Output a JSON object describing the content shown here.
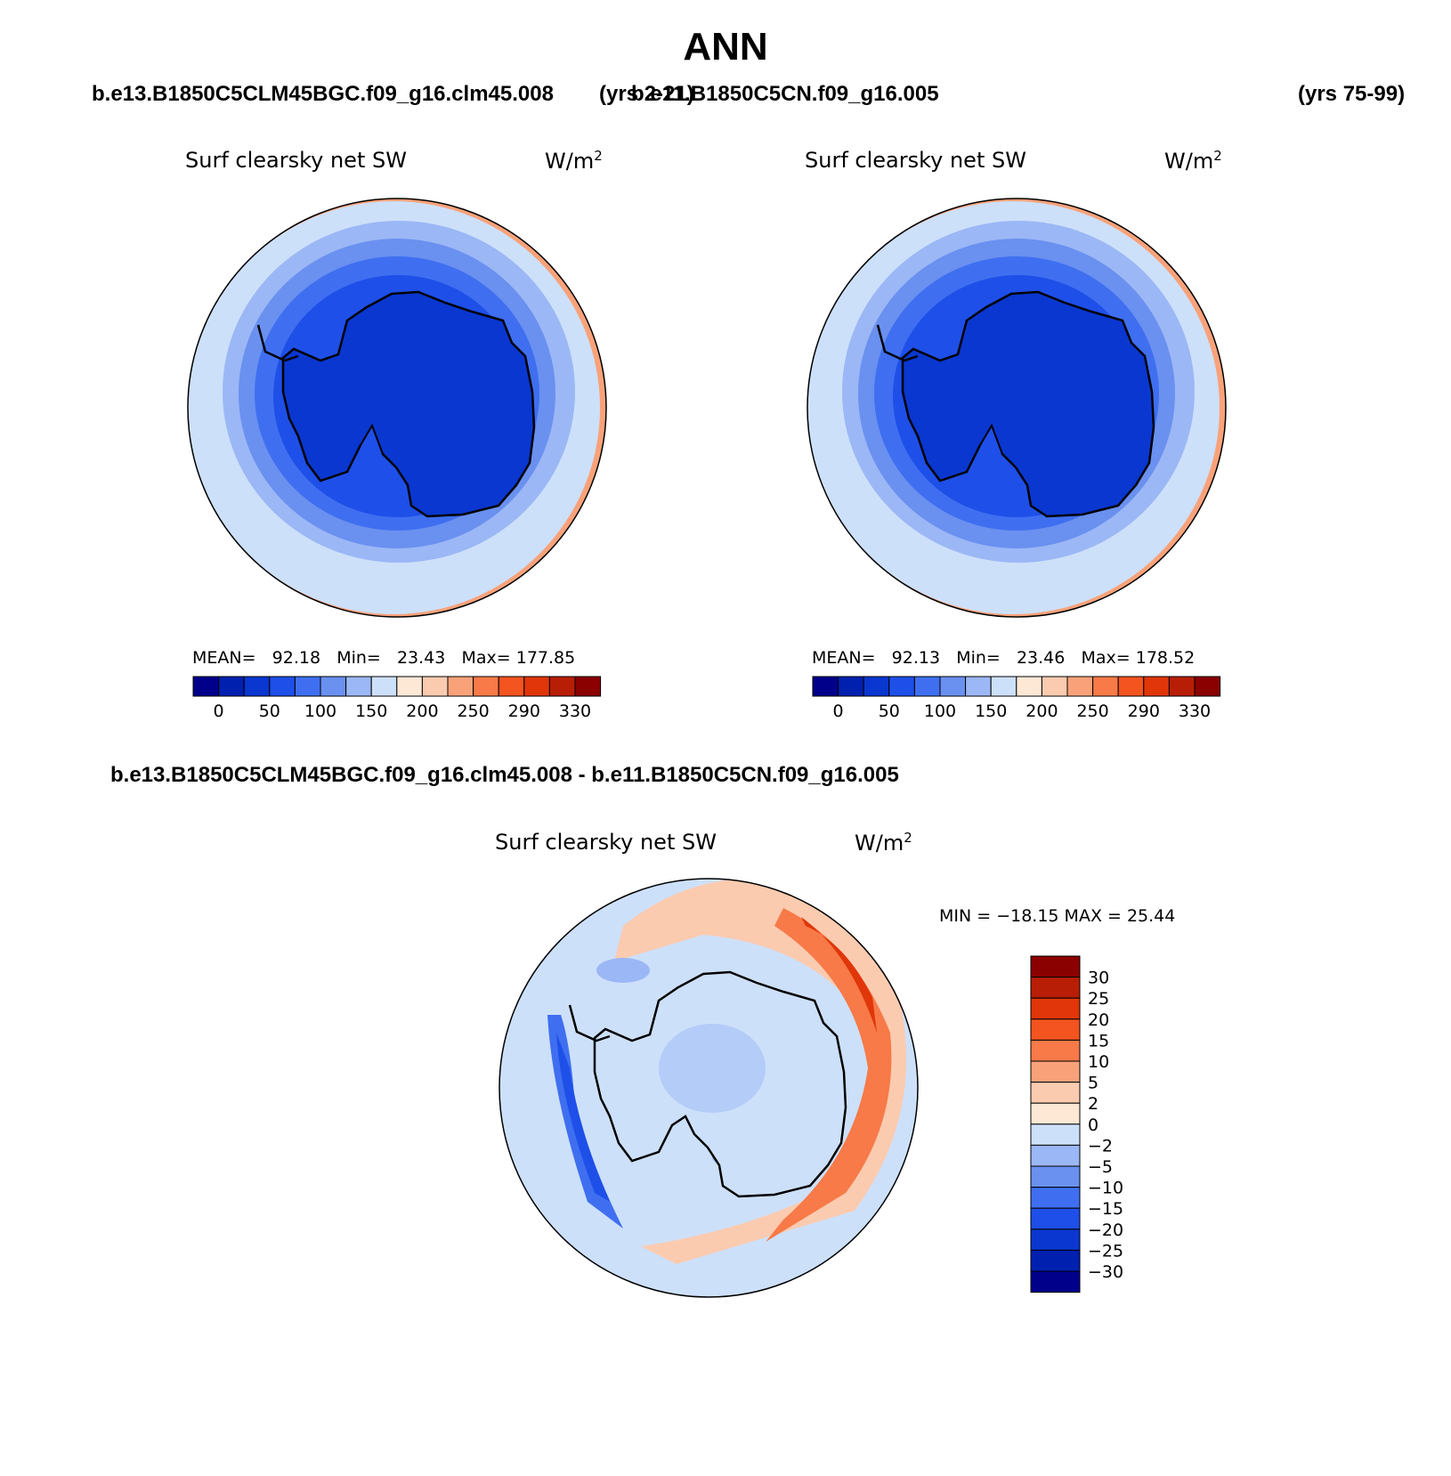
{
  "title": "ANN",
  "panel_top_left": {
    "case": "b.e13.B1850C5CLM45BGC.f09_g16.clm45.008",
    "years": "(yrs 2-21)",
    "label": "Surf clearsky net SW",
    "units_base": "W/m",
    "units_exp": "2",
    "stats": {
      "mean_label": "MEAN=",
      "mean": "92.18",
      "min_label": "Min=",
      "min": "23.43",
      "max_label": "Max=",
      "max": "177.85"
    }
  },
  "panel_top_right": {
    "case": "b.e11.B1850C5CN.f09_g16.005",
    "years": "(yrs 75-99)",
    "label": "Surf clearsky net SW",
    "units_base": "W/m",
    "units_exp": "2",
    "stats": {
      "mean_label": "MEAN=",
      "mean": "92.13",
      "min_label": "Min=",
      "min": "23.46",
      "max_label": "Max=",
      "max": "178.52"
    }
  },
  "panel_diff": {
    "case": "b.e13.B1850C5CLM45BGC.f09_g16.clm45.008 - b.e11.B1850C5CN.f09_g16.005",
    "label": "Surf clearsky net SW",
    "units_base": "W/m",
    "units_exp": "2",
    "minmax": "MIN = −18.15 MAX =   25.44"
  },
  "abs_colorbar": {
    "colors": [
      "#00008b",
      "#0020b0",
      "#0a37d0",
      "#1e4fe8",
      "#3f6ff0",
      "#6a90f0",
      "#9bb7f5",
      "#cde0fa",
      "#fde8d6",
      "#fbcbb0",
      "#f9a27a",
      "#f77a48",
      "#f35420",
      "#e0360a",
      "#b81e06",
      "#8b0000"
    ],
    "labels": [
      "0",
      "50",
      "100",
      "150",
      "200",
      "250",
      "290",
      "330"
    ]
  },
  "diff_colorbar": {
    "colors_top_to_bottom": [
      "#8b0000",
      "#b81e06",
      "#e0360a",
      "#f35420",
      "#f77a48",
      "#f9a27a",
      "#fbcbb0",
      "#fde8d6",
      "#cde0fa",
      "#9bb7f5",
      "#6a90f0",
      "#3f6ff0",
      "#1e4fe8",
      "#0a37d0",
      "#0020b0",
      "#00008b"
    ],
    "labels": [
      "30",
      "25",
      "20",
      "15",
      "10",
      "5",
      "2",
      "0",
      "−2",
      "−5",
      "−10",
      "−15",
      "−20",
      "−25",
      "−30"
    ]
  }
}
